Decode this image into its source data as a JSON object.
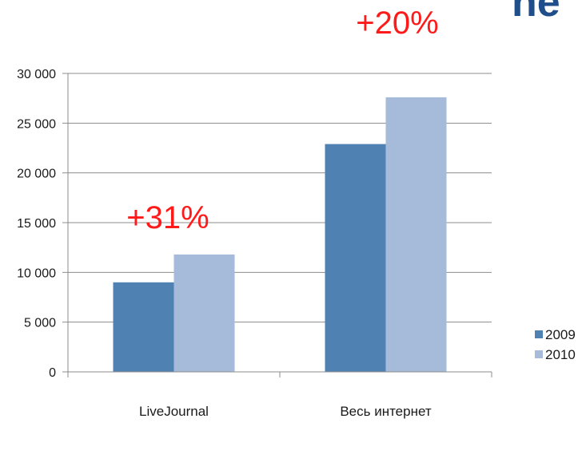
{
  "page_title_fragment": "ne",
  "chart_data": {
    "type": "bar",
    "categories": [
      "LiveJournal",
      "Весь интернет"
    ],
    "series": [
      {
        "name": "2009",
        "values": [
          9000,
          22900
        ],
        "color": "#4f81b3"
      },
      {
        "name": "2010",
        "values": [
          11800,
          27600
        ],
        "color": "#a6bbd9"
      }
    ],
    "ylim": [
      0,
      30000
    ],
    "yticks": [
      0,
      5000,
      10000,
      15000,
      20000,
      25000,
      30000
    ],
    "ytick_labels": [
      "0",
      "5 000",
      "10 000",
      "15 000",
      "20 000",
      "25 000",
      "30 000"
    ],
    "grid": true,
    "legend_position": "right",
    "annotations": [
      "+31%",
      "+20%"
    ]
  }
}
